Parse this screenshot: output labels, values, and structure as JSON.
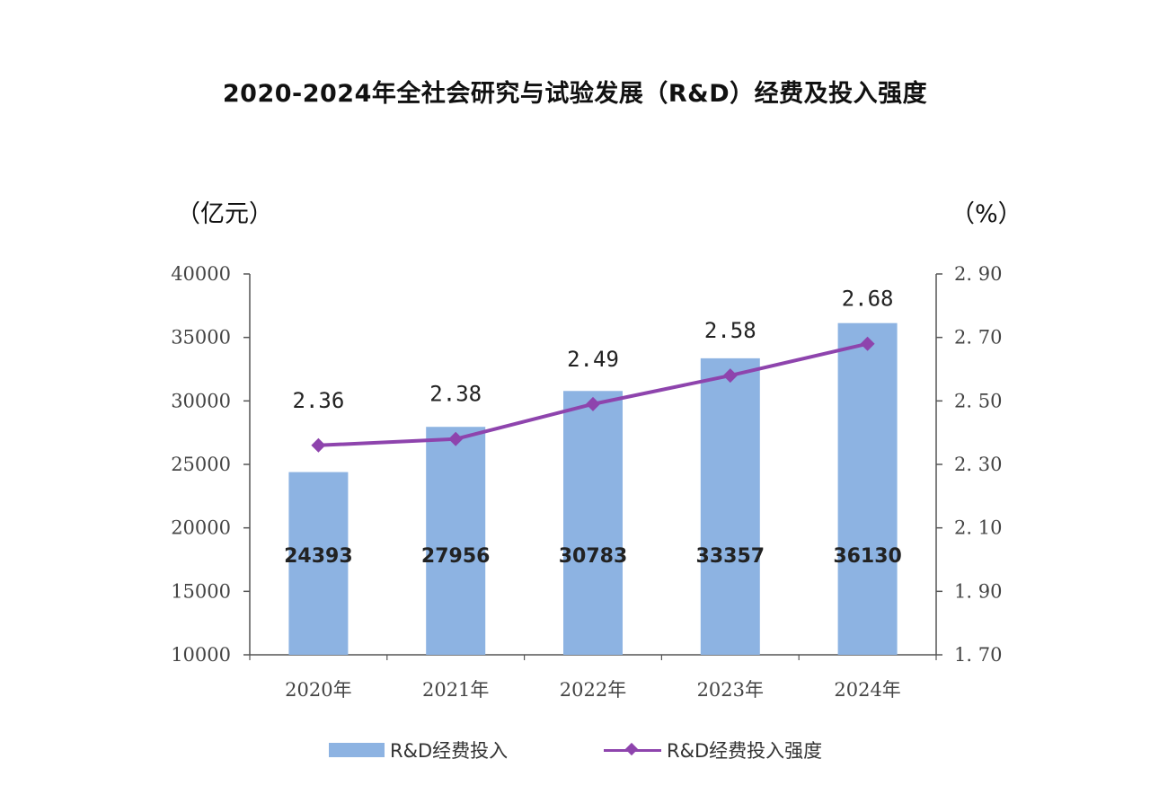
{
  "chart_data": {
    "type": "bar",
    "title": "2020-2024年全社会研究与试验发展（R&D）经费及投入强度",
    "ylabel_left": "（亿元）",
    "ylabel_right": "（%）",
    "categories": [
      "2020年",
      "2021年",
      "2022年",
      "2023年",
      "2024年"
    ],
    "series": [
      {
        "name": "R&D经费投入",
        "type": "bar",
        "axis": "left",
        "color": "#8db3e2",
        "values": [
          24393,
          27956,
          30783,
          33357,
          36130
        ],
        "labels": [
          "24393",
          "27956",
          "30783",
          "33357",
          "36130"
        ]
      },
      {
        "name": "R&D经费投入强度",
        "type": "line",
        "axis": "right",
        "color": "#8e44ad",
        "marker": "diamond",
        "values": [
          2.36,
          2.38,
          2.49,
          2.58,
          2.68
        ],
        "labels": [
          "2.36",
          "2.38",
          "2.49",
          "2.58",
          "2.68"
        ]
      }
    ],
    "ylim_left": [
      10000,
      40000
    ],
    "yticks_left": [
      "40000",
      "35000",
      "30000",
      "25000",
      "20000",
      "15000",
      "10000"
    ],
    "ylim_right": [
      1.7,
      2.9
    ],
    "yticks_right": [
      "2. 90",
      "2. 70",
      "2. 50",
      "2. 30",
      "2. 10",
      "1. 90",
      "1. 70"
    ],
    "grid": false,
    "legend_position": "bottom"
  }
}
